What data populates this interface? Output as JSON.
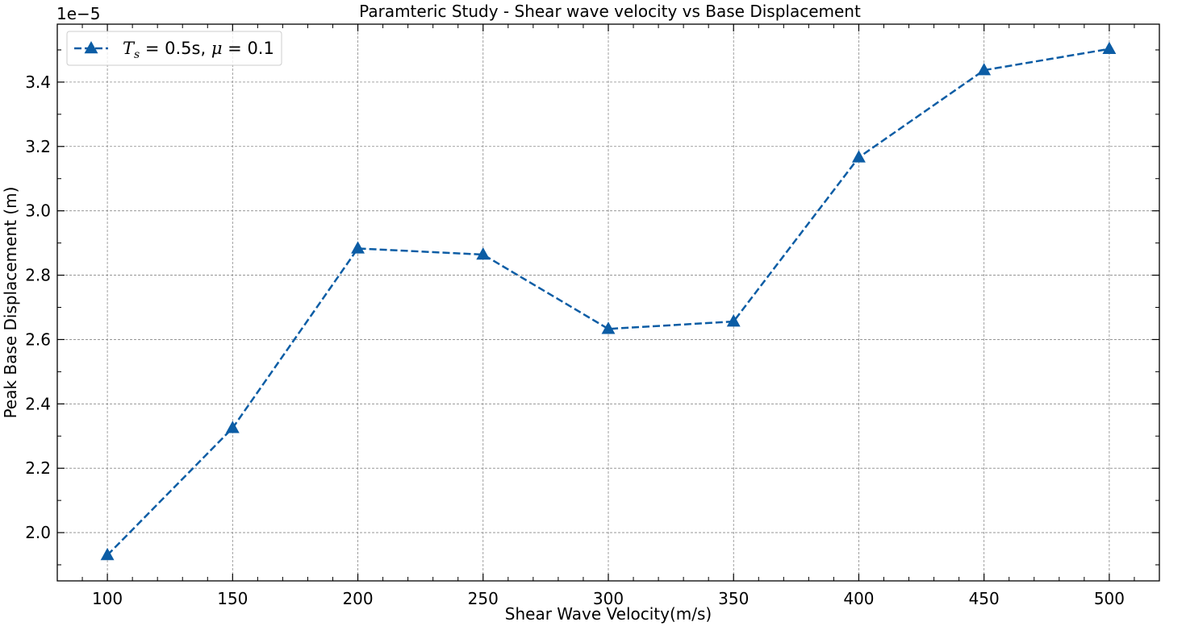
{
  "chart_data": {
    "type": "line",
    "title": "Paramteric Study - Shear wave velocity vs Base Displacement",
    "xlabel": "Shear Wave Velocity(m/s)",
    "ylabel": "Peak Base Displacement (m)",
    "y_offset_label": "1e−5",
    "x": [
      100,
      150,
      200,
      250,
      300,
      350,
      400,
      450,
      500
    ],
    "xlim": [
      80,
      520
    ],
    "ylim": [
      1.85,
      3.58
    ],
    "y_scale_factor": 1e-05,
    "x_ticks": [
      "100",
      "150",
      "200",
      "250",
      "300",
      "350",
      "400",
      "450",
      "500"
    ],
    "y_ticks": [
      "2.0",
      "2.2",
      "2.4",
      "2.6",
      "2.8",
      "3.0",
      "3.2",
      "3.4"
    ],
    "grid": true,
    "legend_position": "upper-left",
    "series": [
      {
        "name": "T_s = 0.5s, μ = 0.1",
        "legend_parts": {
          "t": "T",
          "sub": "s",
          "eq1": " = 0.5s, ",
          "mu": "μ",
          "eq2": " = 0.1"
        },
        "values": [
          1.93,
          2.325,
          2.883,
          2.864,
          2.633,
          2.656,
          3.166,
          3.437,
          3.503
        ],
        "color": "#0c5da5",
        "line_style": "dashed",
        "marker": "triangle-up"
      }
    ]
  }
}
